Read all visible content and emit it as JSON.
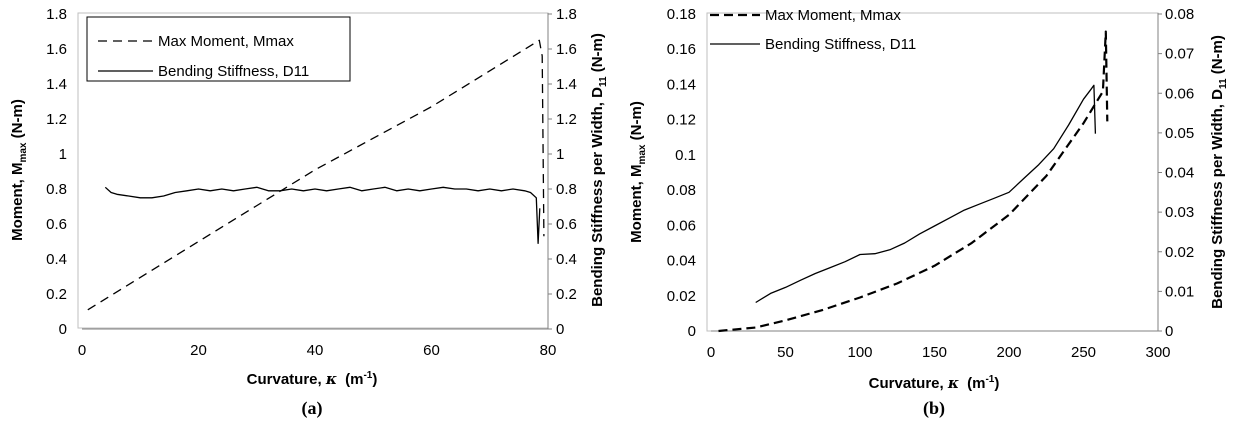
{
  "chart_data": [
    {
      "type": "line",
      "caption": "(a)",
      "xlabel": "Curvature, ",
      "xlabel_symbol": "κ",
      "xlabel_unit": "(m",
      "xlabel_unit_exp": "-1",
      "xlabel_unit_close": ")",
      "ylabel_left": "Moment, M",
      "ylabel_left_sub": "max",
      "ylabel_left_unit": " (N-m)",
      "ylabel_right": "Bending Stiffness per Width, D",
      "ylabel_right_sub": "11",
      "ylabel_right_unit": " (N-m)",
      "xlim": [
        0,
        80
      ],
      "ylim_left": [
        0,
        1.8
      ],
      "ylim_right": [
        0,
        1.8
      ],
      "x_ticks": [
        "0",
        "20",
        "40",
        "60",
        "80"
      ],
      "y_ticks_left": [
        "0",
        "0.2",
        "0.4",
        "0.6",
        "0.8",
        "1",
        "1.2",
        "1.4",
        "1.6",
        "1.8"
      ],
      "y_ticks_right": [
        "0",
        "0.2",
        "0.4",
        "0.6",
        "0.8",
        "1",
        "1.2",
        "1.4",
        "1.6",
        "1.8"
      ],
      "legend_position": "top-left",
      "series": [
        {
          "name": "Max Moment, Mmax",
          "style": "dashed",
          "axis": "left",
          "x": [
            1,
            20,
            40,
            60,
            78.5,
            79.0,
            79.3
          ],
          "y": [
            0.11,
            0.5,
            0.91,
            1.27,
            1.65,
            1.56,
            0.53
          ]
        },
        {
          "name": "Bending Stiffness, D11",
          "style": "solid",
          "axis": "right",
          "x": [
            4,
            5,
            6,
            8,
            10,
            12,
            14,
            16,
            18,
            20,
            22,
            24,
            26,
            28,
            30,
            32,
            34,
            36,
            38,
            40,
            42,
            44,
            46,
            48,
            50,
            52,
            54,
            56,
            58,
            60,
            62,
            64,
            66,
            68,
            70,
            72,
            74,
            76,
            77,
            78,
            78.3,
            78.6
          ],
          "y": [
            0.81,
            0.78,
            0.77,
            0.76,
            0.75,
            0.75,
            0.76,
            0.78,
            0.79,
            0.8,
            0.79,
            0.8,
            0.79,
            0.8,
            0.81,
            0.79,
            0.79,
            0.8,
            0.79,
            0.8,
            0.79,
            0.8,
            0.81,
            0.79,
            0.8,
            0.81,
            0.79,
            0.8,
            0.79,
            0.8,
            0.81,
            0.8,
            0.8,
            0.79,
            0.8,
            0.79,
            0.8,
            0.79,
            0.78,
            0.75,
            0.49,
            0.69
          ]
        }
      ]
    },
    {
      "type": "line",
      "caption": "(b)",
      "xlabel": "Curvature, ",
      "xlabel_symbol": "κ",
      "xlabel_unit": "(m",
      "xlabel_unit_exp": "-1",
      "xlabel_unit_close": ")",
      "ylabel_left": "Moment, M",
      "ylabel_left_sub": "max",
      "ylabel_left_unit": " (N-m)",
      "ylabel_right": "Bending Stiffness per Width, D",
      "ylabel_right_sub": "11",
      "ylabel_right_unit": " (N-m)",
      "xlim": [
        0,
        300
      ],
      "ylim_left": [
        0,
        0.18
      ],
      "ylim_right": [
        0,
        0.08
      ],
      "x_ticks": [
        "0",
        "50",
        "100",
        "150",
        "200",
        "250",
        "300"
      ],
      "y_ticks_left": [
        "0",
        "0.02",
        "0.04",
        "0.06",
        "0.08",
        "0.1",
        "0.12",
        "0.14",
        "0.16",
        "0.18"
      ],
      "y_ticks_right": [
        "0",
        "0.01",
        "0.02",
        "0.03",
        "0.04",
        "0.05",
        "0.06",
        "0.07",
        "0.08"
      ],
      "legend_position": "top-left",
      "series": [
        {
          "name": "Max Moment, Mmax",
          "style": "dashed",
          "axis": "left",
          "x": [
            5,
            30,
            50,
            75,
            100,
            125,
            150,
            175,
            200,
            225,
            250,
            263,
            265,
            266
          ],
          "y": [
            0.0,
            0.002,
            0.006,
            0.012,
            0.019,
            0.027,
            0.037,
            0.05,
            0.066,
            0.088,
            0.118,
            0.136,
            0.17,
            0.119
          ]
        },
        {
          "name": "Bending Stiffness, D11",
          "style": "solid",
          "axis": "right",
          "x": [
            30,
            40,
            50,
            60,
            70,
            80,
            90,
            100,
            110,
            120,
            130,
            140,
            150,
            160,
            170,
            180,
            190,
            200,
            210,
            220,
            230,
            240,
            250,
            255,
            257,
            258
          ],
          "y": [
            0.0072,
            0.0095,
            0.011,
            0.0128,
            0.0145,
            0.016,
            0.0175,
            0.0193,
            0.0195,
            0.0205,
            0.0222,
            0.0245,
            0.0265,
            0.0285,
            0.0305,
            0.032,
            0.0335,
            0.035,
            0.0385,
            0.042,
            0.046,
            0.052,
            0.0585,
            0.061,
            0.062,
            0.0498
          ]
        }
      ]
    }
  ]
}
